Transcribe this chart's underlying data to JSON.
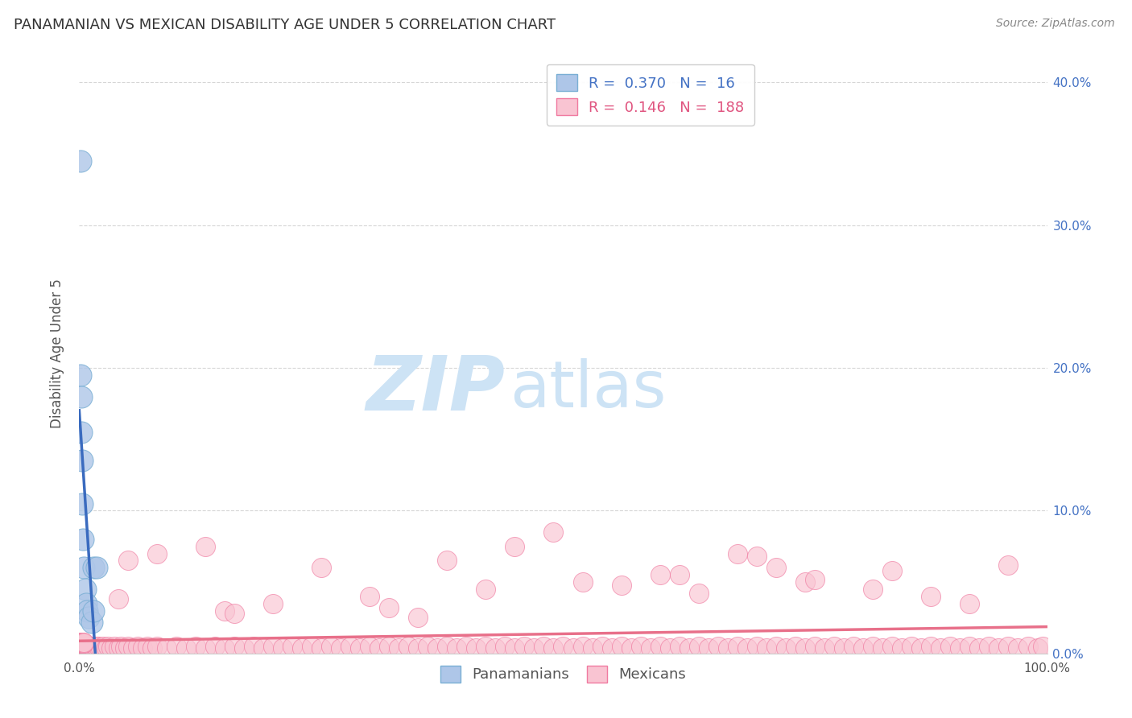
{
  "title": "PANAMANIAN VS MEXICAN DISABILITY AGE UNDER 5 CORRELATION CHART",
  "source_text": "Source: ZipAtlas.com",
  "ylabel": "Disability Age Under 5",
  "xlim": [
    0.0,
    1.0
  ],
  "ylim": [
    0.0,
    0.42
  ],
  "x_tick_positions": [
    0.0,
    1.0
  ],
  "x_tick_labels": [
    "0.0%",
    "100.0%"
  ],
  "y_ticks": [
    0.0,
    0.1,
    0.2,
    0.3,
    0.4
  ],
  "y_tick_labels_right": [
    "0.0%",
    "10.0%",
    "20.0%",
    "30.0%",
    "40.0%"
  ],
  "R_pan": 0.37,
  "N_pan": 16,
  "R_mex": 0.146,
  "N_mex": 188,
  "pan_color": "#aec6e8",
  "pan_edge_color": "#7aafd4",
  "mex_color": "#f9c4d2",
  "mex_edge_color": "#f07aa0",
  "pan_line_color": "#3a6bbf",
  "pan_dash_color": "#7aafd4",
  "mex_line_color": "#e8708a",
  "watermark_zip": "ZIP",
  "watermark_atlas": "atlas",
  "watermark_color": "#cde3f5",
  "background_color": "#ffffff",
  "grid_color": "#cccccc",
  "pan_x": [
    0.001,
    0.001,
    0.002,
    0.002,
    0.003,
    0.003,
    0.004,
    0.005,
    0.006,
    0.007,
    0.008,
    0.01,
    0.013,
    0.015,
    0.015,
    0.018
  ],
  "pan_y": [
    0.345,
    0.195,
    0.155,
    0.18,
    0.135,
    0.105,
    0.08,
    0.06,
    0.045,
    0.035,
    0.03,
    0.025,
    0.022,
    0.06,
    0.03,
    0.06
  ],
  "mex_x": [
    0.001,
    0.001,
    0.001,
    0.001,
    0.001,
    0.002,
    0.002,
    0.002,
    0.002,
    0.002,
    0.003,
    0.003,
    0.003,
    0.003,
    0.004,
    0.004,
    0.004,
    0.005,
    0.005,
    0.005,
    0.006,
    0.006,
    0.007,
    0.007,
    0.008,
    0.008,
    0.009,
    0.009,
    0.01,
    0.01,
    0.011,
    0.012,
    0.013,
    0.014,
    0.015,
    0.016,
    0.017,
    0.018,
    0.019,
    0.02,
    0.022,
    0.025,
    0.028,
    0.03,
    0.033,
    0.036,
    0.04,
    0.043,
    0.047,
    0.05,
    0.055,
    0.06,
    0.065,
    0.07,
    0.075,
    0.08,
    0.09,
    0.1,
    0.11,
    0.12,
    0.13,
    0.14,
    0.15,
    0.16,
    0.17,
    0.18,
    0.19,
    0.2,
    0.21,
    0.22,
    0.23,
    0.24,
    0.25,
    0.26,
    0.27,
    0.28,
    0.29,
    0.3,
    0.31,
    0.32,
    0.33,
    0.34,
    0.35,
    0.36,
    0.37,
    0.38,
    0.39,
    0.4,
    0.41,
    0.42,
    0.43,
    0.44,
    0.45,
    0.46,
    0.47,
    0.48,
    0.49,
    0.5,
    0.51,
    0.52,
    0.53,
    0.54,
    0.55,
    0.56,
    0.57,
    0.58,
    0.59,
    0.6,
    0.61,
    0.62,
    0.63,
    0.64,
    0.65,
    0.66,
    0.67,
    0.68,
    0.69,
    0.7,
    0.71,
    0.72,
    0.73,
    0.74,
    0.75,
    0.76,
    0.77,
    0.78,
    0.79,
    0.8,
    0.81,
    0.82,
    0.83,
    0.84,
    0.85,
    0.86,
    0.87,
    0.88,
    0.89,
    0.9,
    0.91,
    0.92,
    0.93,
    0.94,
    0.95,
    0.96,
    0.97,
    0.98,
    0.99,
    0.995,
    0.45,
    0.38,
    0.49,
    0.6,
    0.25,
    0.68,
    0.75,
    0.82,
    0.88,
    0.92,
    0.15,
    0.2,
    0.3,
    0.42,
    0.52,
    0.62,
    0.72,
    0.05,
    0.08,
    0.13,
    0.04,
    0.16,
    0.32,
    0.56,
    0.64,
    0.76,
    0.84,
    0.96,
    0.35,
    0.7,
    0.001,
    0.001,
    0.002,
    0.002,
    0.003,
    0.003,
    0.004,
    0.004,
    0.005,
    0.005
  ],
  "mex_y": [
    0.005,
    0.003,
    0.004,
    0.006,
    0.002,
    0.004,
    0.003,
    0.005,
    0.006,
    0.003,
    0.004,
    0.005,
    0.003,
    0.006,
    0.004,
    0.005,
    0.003,
    0.004,
    0.005,
    0.006,
    0.004,
    0.005,
    0.004,
    0.005,
    0.004,
    0.005,
    0.004,
    0.005,
    0.004,
    0.005,
    0.004,
    0.005,
    0.004,
    0.005,
    0.004,
    0.005,
    0.004,
    0.005,
    0.004,
    0.005,
    0.004,
    0.005,
    0.004,
    0.005,
    0.004,
    0.005,
    0.004,
    0.005,
    0.004,
    0.005,
    0.004,
    0.005,
    0.004,
    0.005,
    0.004,
    0.005,
    0.004,
    0.005,
    0.004,
    0.005,
    0.004,
    0.005,
    0.004,
    0.005,
    0.004,
    0.005,
    0.004,
    0.005,
    0.004,
    0.005,
    0.004,
    0.005,
    0.004,
    0.005,
    0.004,
    0.005,
    0.004,
    0.005,
    0.004,
    0.005,
    0.004,
    0.005,
    0.004,
    0.005,
    0.004,
    0.005,
    0.004,
    0.005,
    0.004,
    0.005,
    0.004,
    0.005,
    0.004,
    0.005,
    0.004,
    0.005,
    0.004,
    0.005,
    0.004,
    0.005,
    0.004,
    0.005,
    0.004,
    0.005,
    0.004,
    0.005,
    0.004,
    0.005,
    0.004,
    0.005,
    0.004,
    0.005,
    0.004,
    0.005,
    0.004,
    0.005,
    0.004,
    0.005,
    0.004,
    0.005,
    0.004,
    0.005,
    0.004,
    0.005,
    0.004,
    0.005,
    0.004,
    0.005,
    0.004,
    0.005,
    0.004,
    0.005,
    0.004,
    0.005,
    0.004,
    0.005,
    0.004,
    0.005,
    0.004,
    0.005,
    0.004,
    0.005,
    0.004,
    0.005,
    0.004,
    0.005,
    0.004,
    0.005,
    0.075,
    0.065,
    0.085,
    0.055,
    0.06,
    0.07,
    0.05,
    0.045,
    0.04,
    0.035,
    0.03,
    0.035,
    0.04,
    0.045,
    0.05,
    0.055,
    0.06,
    0.065,
    0.07,
    0.075,
    0.038,
    0.028,
    0.032,
    0.048,
    0.042,
    0.052,
    0.058,
    0.062,
    0.025,
    0.068,
    0.007,
    0.008,
    0.007,
    0.008,
    0.007,
    0.008,
    0.007,
    0.008,
    0.007,
    0.008
  ]
}
